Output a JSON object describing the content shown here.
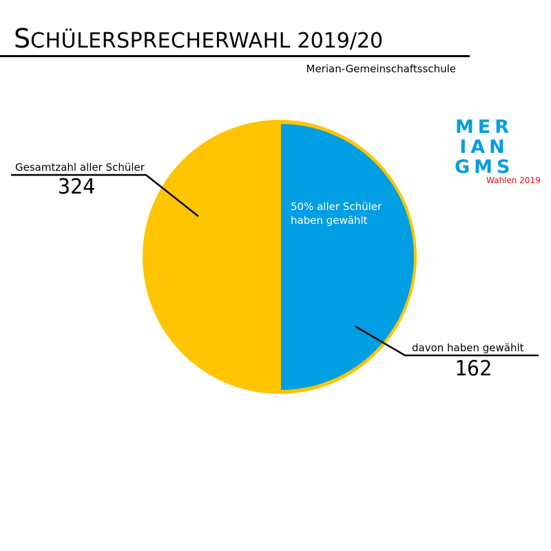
{
  "header": {
    "title_first": "S",
    "title_rest": "chülersprecherwahl",
    "title_year": "2019/20",
    "school": "Merian-Gemeinschaftsschule"
  },
  "logo": {
    "lines": [
      "MER",
      "IAN",
      "GMS"
    ],
    "caption": "Wahlen 2019",
    "color": "#009ee3",
    "caption_color": "#e30613"
  },
  "chart_data": {
    "type": "pie",
    "title": "",
    "slices": [
      {
        "name": "Gesamtzahl aller Schüler",
        "value": 324,
        "color": "#ffc400"
      },
      {
        "name": "davon haben gewählt",
        "value": 162,
        "color": "#009ee3"
      }
    ],
    "share_label_line1": "50% aller Schüler",
    "share_label_line2": "haben gewählt",
    "share_fraction": 0.5
  }
}
